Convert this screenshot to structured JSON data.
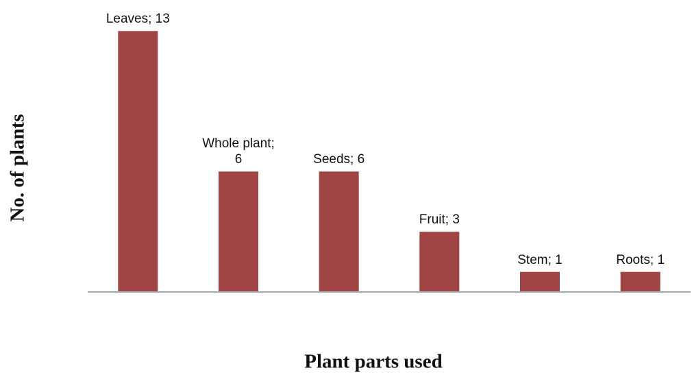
{
  "chart_data": {
    "type": "bar",
    "values": [
      13,
      6,
      6,
      3,
      1,
      1
    ],
    "value_labels": [
      "Leaves; 13",
      "Whole plant; 6",
      "Seeds; 6",
      "Fruit; 3",
      "Stem; 1",
      "Roots; 1"
    ],
    "color": "#a04543",
    "ylim": [
      0,
      14
    ],
    "y_label": "No. of  plants",
    "x_label": "Plant parts used"
  }
}
